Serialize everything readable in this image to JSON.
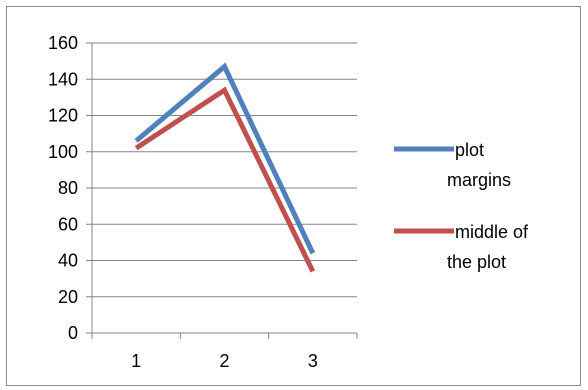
{
  "chart_data": {
    "type": "line",
    "categories": [
      "1",
      "2",
      "3"
    ],
    "series": [
      {
        "name": "plot margins",
        "values": [
          106,
          147,
          44
        ],
        "color": "#4f81bd"
      },
      {
        "name": "middle of the plot",
        "values": [
          102,
          134,
          34
        ],
        "color": "#c0504d"
      }
    ],
    "ylim": [
      0,
      160
    ],
    "yticks": [
      0,
      20,
      40,
      60,
      80,
      100,
      120,
      140,
      160
    ],
    "grid": true,
    "legend_position": "right",
    "legend_lines": [
      [
        "plot",
        "margins"
      ],
      [
        " middle of",
        "the plot"
      ]
    ]
  }
}
